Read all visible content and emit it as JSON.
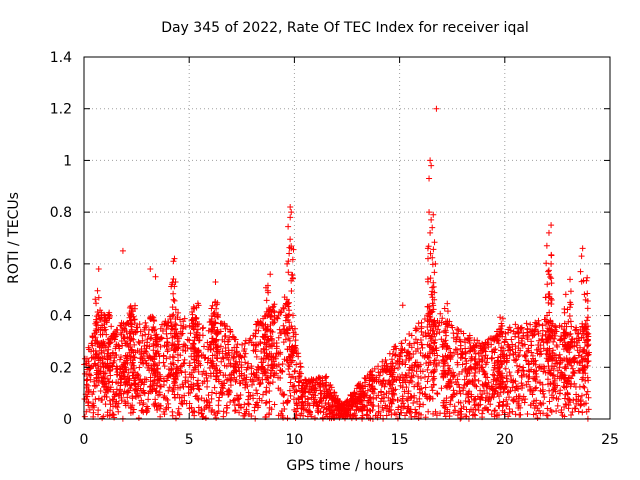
{
  "chart_data": {
    "type": "scatter",
    "title": "Day 345 of 2022, Rate Of TEC Index for receiver iqal",
    "xlabel": "GPS time / hours",
    "ylabel": "ROTI / TECUs",
    "xlim": [
      0,
      25
    ],
    "ylim": [
      0,
      1.4
    ],
    "grid": true,
    "marker": "+",
    "x_ticks": [
      0,
      5,
      10,
      15,
      20,
      25
    ],
    "x_tick_labels": [
      "0",
      "5",
      "10",
      "15",
      "20",
      "25"
    ],
    "y_ticks": [
      0,
      0.2,
      0.4,
      0.6,
      0.8,
      1.0,
      1.2,
      1.4
    ],
    "y_tick_labels": [
      "0",
      "0.2",
      "0.4",
      "0.6",
      "0.8",
      "1",
      "1.2",
      "1.4"
    ],
    "colors": {
      "points": "#ff0000",
      "grid": "#a0a0a0",
      "axes": "#000000"
    },
    "outliers": [
      {
        "x": 16.75,
        "y": 1.2
      },
      {
        "x": 16.45,
        "y": 1.0
      },
      {
        "x": 16.5,
        "y": 0.98
      },
      {
        "x": 16.4,
        "y": 0.93
      },
      {
        "x": 9.8,
        "y": 0.82
      },
      {
        "x": 9.85,
        "y": 0.8
      },
      {
        "x": 9.8,
        "y": 0.78
      },
      {
        "x": 16.4,
        "y": 0.8
      },
      {
        "x": 16.6,
        "y": 0.79
      },
      {
        "x": 16.5,
        "y": 0.77
      },
      {
        "x": 22.2,
        "y": 0.75
      },
      {
        "x": 22.1,
        "y": 0.72
      },
      {
        "x": 16.55,
        "y": 0.74
      },
      {
        "x": 16.45,
        "y": 0.72
      },
      {
        "x": 22.0,
        "y": 0.67
      },
      {
        "x": 23.7,
        "y": 0.66
      },
      {
        "x": 23.65,
        "y": 0.63
      },
      {
        "x": 1.85,
        "y": 0.65
      },
      {
        "x": 9.85,
        "y": 0.66
      },
      {
        "x": 9.75,
        "y": 0.64
      },
      {
        "x": 4.3,
        "y": 0.62
      },
      {
        "x": 4.25,
        "y": 0.61
      },
      {
        "x": 22.2,
        "y": 0.6
      },
      {
        "x": 0.7,
        "y": 0.58
      },
      {
        "x": 3.15,
        "y": 0.58
      },
      {
        "x": 16.35,
        "y": 0.62
      },
      {
        "x": 16.7,
        "y": 0.6
      },
      {
        "x": 8.85,
        "y": 0.56
      },
      {
        "x": 3.4,
        "y": 0.55
      },
      {
        "x": 6.25,
        "y": 0.53
      },
      {
        "x": 23.6,
        "y": 0.57
      },
      {
        "x": 23.1,
        "y": 0.54
      },
      {
        "x": 22.1,
        "y": 0.56
      },
      {
        "x": 15.15,
        "y": 0.44
      },
      {
        "x": 21.95,
        "y": 0.47
      }
    ],
    "bursts": [
      {
        "x": 0.7,
        "top": 0.5
      },
      {
        "x": 1.1,
        "top": 0.42
      },
      {
        "x": 1.9,
        "top": 0.38
      },
      {
        "x": 2.3,
        "top": 0.44
      },
      {
        "x": 3.3,
        "top": 0.4
      },
      {
        "x": 4.3,
        "top": 0.55
      },
      {
        "x": 5.3,
        "top": 0.45
      },
      {
        "x": 6.2,
        "top": 0.5
      },
      {
        "x": 8.8,
        "top": 0.52
      },
      {
        "x": 9.8,
        "top": 0.75
      },
      {
        "x": 16.5,
        "top": 0.7
      },
      {
        "x": 17.2,
        "top": 0.45
      },
      {
        "x": 19.8,
        "top": 0.4
      },
      {
        "x": 22.1,
        "top": 0.65
      },
      {
        "x": 23.0,
        "top": 0.5
      },
      {
        "x": 23.8,
        "top": 0.55
      }
    ],
    "envelope": [
      {
        "x": 0.0,
        "y": 0.22
      },
      {
        "x": 0.7,
        "y": 0.38
      },
      {
        "x": 1.5,
        "y": 0.32
      },
      {
        "x": 2.3,
        "y": 0.38
      },
      {
        "x": 3.5,
        "y": 0.32
      },
      {
        "x": 4.3,
        "y": 0.4
      },
      {
        "x": 5.5,
        "y": 0.34
      },
      {
        "x": 6.5,
        "y": 0.36
      },
      {
        "x": 7.5,
        "y": 0.28
      },
      {
        "x": 8.8,
        "y": 0.4
      },
      {
        "x": 9.8,
        "y": 0.45
      },
      {
        "x": 10.4,
        "y": 0.14
      },
      {
        "x": 11.5,
        "y": 0.16
      },
      {
        "x": 12.0,
        "y": 0.08
      },
      {
        "x": 12.3,
        "y": 0.05
      },
      {
        "x": 13.0,
        "y": 0.12
      },
      {
        "x": 14.0,
        "y": 0.2
      },
      {
        "x": 15.0,
        "y": 0.28
      },
      {
        "x": 16.5,
        "y": 0.42
      },
      {
        "x": 17.5,
        "y": 0.34
      },
      {
        "x": 19.0,
        "y": 0.28
      },
      {
        "x": 20.5,
        "y": 0.34
      },
      {
        "x": 22.0,
        "y": 0.36
      },
      {
        "x": 23.0,
        "y": 0.32
      },
      {
        "x": 24.0,
        "y": 0.35
      }
    ]
  }
}
